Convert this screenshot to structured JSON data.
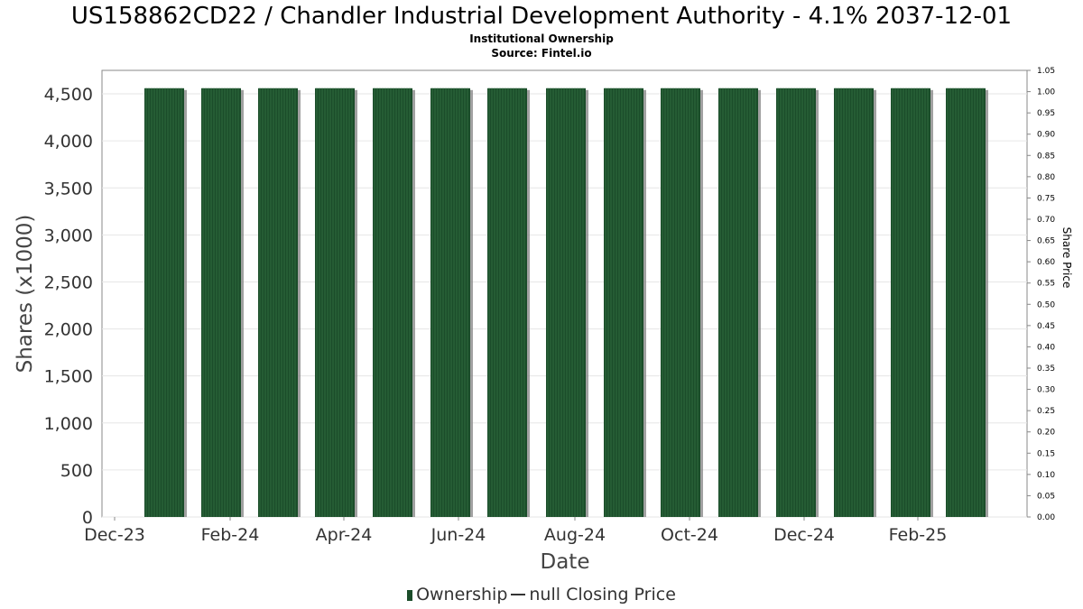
{
  "title": "US158862CD22 / Chandler Industrial Development Authority - 4.1% 2037-12-01",
  "subtitle": "Institutional Ownership",
  "source": "Source: Fintel.io",
  "legend": {
    "ownership": "Ownership",
    "price": "null Closing Price"
  },
  "colors": {
    "bar": "#1b4d2a",
    "bar_shadow": "#8a8a8a",
    "grid": "#e6e6e6",
    "axis": "#888888"
  },
  "chart_data": {
    "type": "bar",
    "xlabel": "Date",
    "ylabel": "Shares (x1000)",
    "y2label": "Share Price",
    "ylim": [
      0,
      4750
    ],
    "y2lim": [
      0,
      1.05
    ],
    "yticks": [
      0,
      500,
      1000,
      1500,
      2000,
      2500,
      3000,
      3500,
      4000,
      4500
    ],
    "yticklabels": [
      "0",
      "500",
      "1,000",
      "1,500",
      "2,000",
      "2,500",
      "3,000",
      "3,500",
      "4,000",
      "4,500"
    ],
    "y2ticklabels": [
      "0.00",
      "0.05",
      "0.10",
      "0.15",
      "0.20",
      "0.25",
      "0.30",
      "0.35",
      "0.40",
      "0.45",
      "0.50",
      "0.55",
      "0.60",
      "0.65",
      "0.70",
      "0.75",
      "0.80",
      "0.85",
      "0.90",
      "0.95",
      "1.00",
      "1.05"
    ],
    "xticklabels": [
      "Dec-23",
      "Feb-24",
      "Apr-24",
      "Jun-24",
      "Aug-24",
      "Oct-24",
      "Dec-24",
      "Feb-25"
    ],
    "grid": true,
    "legend_position": "bottom",
    "series": [
      {
        "name": "Ownership",
        "values": [
          4560,
          4560,
          4560,
          4560,
          4560,
          4560,
          4560,
          4560,
          4560,
          4560,
          4560,
          4560,
          4560,
          4560,
          4560
        ]
      }
    ]
  }
}
